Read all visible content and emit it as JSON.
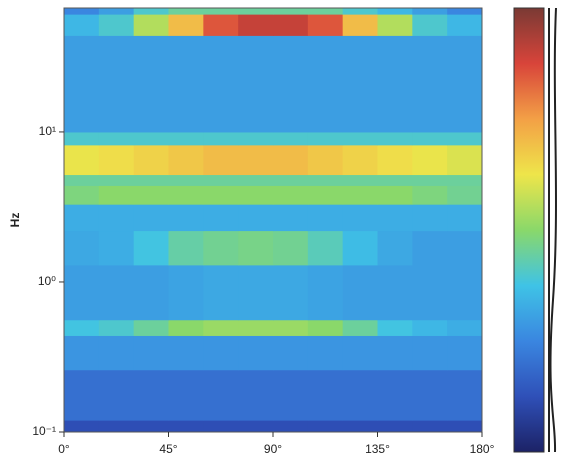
{
  "chart_data": {
    "type": "heatmap",
    "y_label": "Hz",
    "xlim": [
      0,
      180
    ],
    "xticks": [
      {
        "value": 0,
        "label": "0°"
      },
      {
        "value": 45,
        "label": "45°"
      },
      {
        "value": 90,
        "label": "90°"
      },
      {
        "value": 135,
        "label": "135°"
      },
      {
        "value": 180,
        "label": "180°"
      }
    ],
    "ylim": [
      0.1,
      67
    ],
    "yscale": "log",
    "yticks": [
      {
        "value": 0.1,
        "label": "10⁻¹"
      },
      {
        "value": 1,
        "label": "10⁰"
      },
      {
        "value": 10,
        "label": "10¹"
      }
    ],
    "x_edges": [
      0,
      15,
      30,
      45,
      60,
      75,
      90,
      105,
      120,
      135,
      150,
      165,
      180
    ],
    "y_edges": [
      0.1,
      0.12,
      0.26,
      0.44,
      0.56,
      1.3,
      2.2,
      3.3,
      4.4,
      5.2,
      8.2,
      10,
      44,
      61,
      67
    ],
    "zlim": [
      0,
      1
    ],
    "colorscale": [
      "#1c2266",
      "#2f50b8",
      "#3a86e0",
      "#3fc3e6",
      "#8ad86a",
      "#eee54a",
      "#f3a046",
      "#d8443a",
      "#7a3a34"
    ],
    "z": [
      [
        0.12,
        0.12,
        0.12,
        0.12,
        0.12,
        0.12,
        0.12,
        0.12,
        0.12,
        0.12,
        0.12,
        0.12
      ],
      [
        0.2,
        0.2,
        0.2,
        0.2,
        0.2,
        0.2,
        0.2,
        0.2,
        0.2,
        0.2,
        0.2,
        0.2
      ],
      [
        0.28,
        0.28,
        0.28,
        0.28,
        0.28,
        0.28,
        0.28,
        0.28,
        0.28,
        0.28,
        0.28,
        0.28
      ],
      [
        0.38,
        0.4,
        0.45,
        0.5,
        0.52,
        0.52,
        0.52,
        0.5,
        0.45,
        0.38,
        0.35,
        0.33
      ],
      [
        0.3,
        0.3,
        0.3,
        0.31,
        0.32,
        0.32,
        0.32,
        0.31,
        0.3,
        0.3,
        0.3,
        0.3
      ],
      [
        0.32,
        0.33,
        0.38,
        0.44,
        0.46,
        0.47,
        0.46,
        0.42,
        0.36,
        0.32,
        0.3,
        0.3
      ],
      [
        0.33,
        0.33,
        0.33,
        0.33,
        0.33,
        0.33,
        0.33,
        0.33,
        0.33,
        0.33,
        0.33,
        0.33
      ],
      [
        0.48,
        0.5,
        0.5,
        0.5,
        0.5,
        0.5,
        0.5,
        0.5,
        0.5,
        0.5,
        0.48,
        0.46
      ],
      [
        0.45,
        0.45,
        0.45,
        0.45,
        0.45,
        0.45,
        0.45,
        0.45,
        0.45,
        0.45,
        0.45,
        0.45
      ],
      [
        0.62,
        0.64,
        0.66,
        0.68,
        0.7,
        0.7,
        0.7,
        0.68,
        0.66,
        0.64,
        0.62,
        0.6
      ],
      [
        0.4,
        0.4,
        0.4,
        0.4,
        0.4,
        0.4,
        0.4,
        0.4,
        0.4,
        0.4,
        0.4,
        0.4
      ],
      [
        0.3,
        0.3,
        0.3,
        0.3,
        0.3,
        0.3,
        0.3,
        0.3,
        0.3,
        0.3,
        0.3,
        0.3
      ],
      [
        0.35,
        0.4,
        0.55,
        0.7,
        0.85,
        0.9,
        0.9,
        0.85,
        0.7,
        0.55,
        0.4,
        0.35
      ],
      [
        0.25,
        0.3,
        0.4,
        0.45,
        0.45,
        0.45,
        0.45,
        0.45,
        0.4,
        0.35,
        0.3,
        0.25
      ]
    ]
  }
}
